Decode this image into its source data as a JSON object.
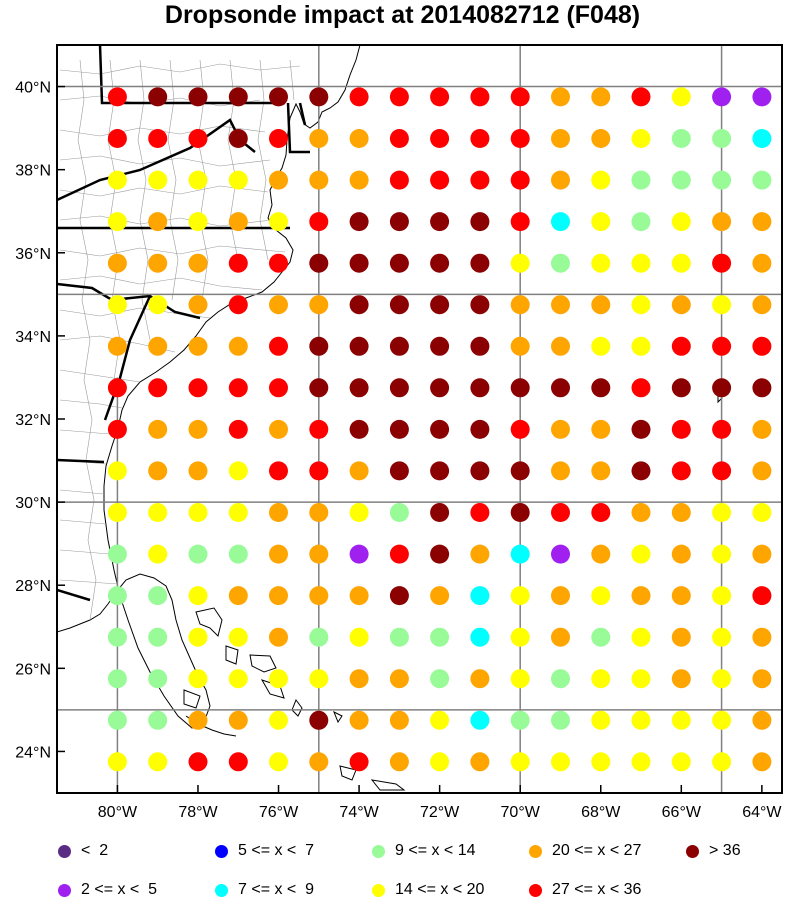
{
  "title": "Dropsonde impact at 2014082712 (F048)",
  "legend": [
    {
      "label": "<  2",
      "color": "#5b2c83"
    },
    {
      "label": "2 <= x <  5",
      "color": "#a020f0"
    },
    {
      "label": "5 <= x <  7",
      "color": "#0000ff"
    },
    {
      "label": "7 <= x <  9",
      "color": "#00ffff"
    },
    {
      "label": "9 <= x < 14",
      "color": "#98fb98"
    },
    {
      "label": "14 <= x < 20",
      "color": "#ffff00"
    },
    {
      "label": "20 <= x < 27",
      "color": "#ffa500"
    },
    {
      "label": "27 <= x < 36",
      "color": "#ff0000"
    },
    {
      "label": "> 36",
      "color": "#8b0000"
    }
  ],
  "chart_data": {
    "type": "scatter",
    "projection": "lat-lon",
    "lon_range": [
      -81.5,
      -63.5
    ],
    "lat_range": [
      23.0,
      41.0
    ],
    "grid_lons": [
      -75,
      -70,
      -65
    ],
    "grid_lats": [
      25,
      30,
      35,
      40
    ],
    "x_ticks": [
      {
        "value": -80,
        "label": "80°W"
      },
      {
        "value": -78,
        "label": "78°W"
      },
      {
        "value": -76,
        "label": "76°W"
      },
      {
        "value": -74,
        "label": "74°W"
      },
      {
        "value": -72,
        "label": "72°W"
      },
      {
        "value": -70,
        "label": "70°W"
      },
      {
        "value": -68,
        "label": "68°W"
      },
      {
        "value": -66,
        "label": "66°W"
      },
      {
        "value": -64,
        "label": "64°W"
      }
    ],
    "y_ticks": [
      {
        "value": 24,
        "label": "24°N"
      },
      {
        "value": 26,
        "label": "26°N"
      },
      {
        "value": 28,
        "label": "28°N"
      },
      {
        "value": 30,
        "label": "30°N"
      },
      {
        "value": 32,
        "label": "32°N"
      },
      {
        "value": 34,
        "label": "34°N"
      },
      {
        "value": 36,
        "label": "36°N"
      },
      {
        "value": 38,
        "label": "38°N"
      },
      {
        "value": 40,
        "label": "40°N"
      }
    ],
    "lons": [
      -80,
      -79,
      -78,
      -77,
      -76,
      -75,
      -74,
      -73,
      -72,
      -71,
      -70,
      -69,
      -68,
      -67,
      -66,
      -65,
      -64
    ],
    "lats": [
      39.75,
      38.75,
      37.75,
      36.75,
      35.75,
      34.75,
      33.75,
      32.75,
      31.75,
      30.75,
      29.75,
      28.75,
      27.75,
      26.75,
      25.75,
      24.75,
      23.75
    ],
    "category_key": {
      "P": "2 <= x <  5",
      "C": "7 <= x <  9",
      "G": "9 <= x < 14",
      "Y": "14 <= x < 20",
      "O": "20 <= x < 27",
      "R": "27 <= x < 36",
      "D": "> 36"
    },
    "rows": [
      "RDDDDDRRRRROORYPP",
      "RRRDROORRRROOYGGC",
      "YYYYOOORRRROYGGGG",
      "YOYOYRDDDDRCYGYOO",
      "OOORRDDDDDYGYYYRO",
      "YYOROODDDDOOOYOYO",
      "OOOORDDDDDOOYYRRR",
      "RRRRRDDDDDDDDRDDD",
      "ROORORDDDDROODRRO",
      "YOOYRRODDDDOODRRO",
      "YYYYOOYGDRDRROOYY",
      "GYGGOOPRDOCPOYOYO",
      "GGYOOOODOCYOYOOYR",
      "GGYYOGYGGCYOGYOYO",
      "GGYYYYOOGOYGYYOYO",
      "GGOOYDOOYCGGYYYYO",
      "YYRRYOROYOYYYYYYO"
    ]
  }
}
